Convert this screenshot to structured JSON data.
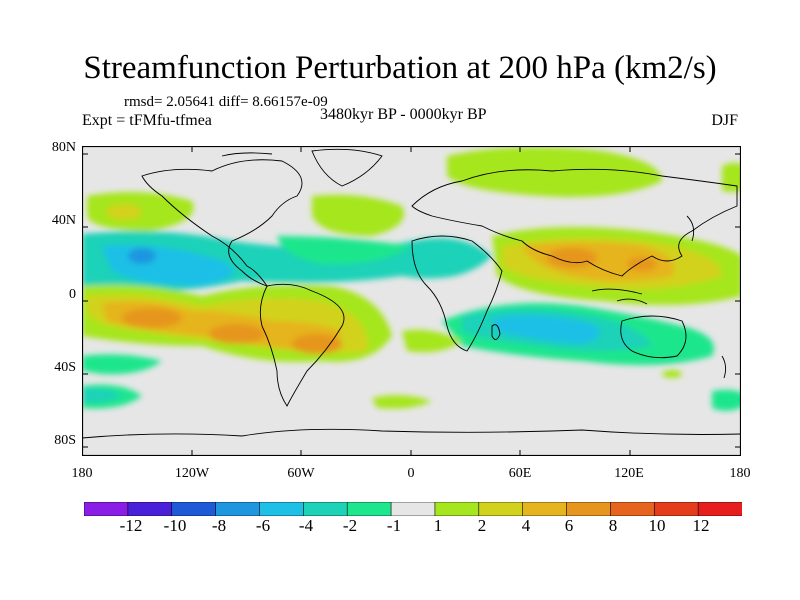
{
  "title": "Streamfunction Perturbation at 200 hPa (km2/s)",
  "stats": "rmsd= 2.05641  diff= 8.66157e-09",
  "experiment": "Expt = tFMfu-tfmea",
  "period": "3480kyr BP - 0000kyr BP",
  "season": "DJF",
  "axes": {
    "lat_labels": [
      "80N",
      "40N",
      "0",
      "40S",
      "80S"
    ],
    "lon_labels": [
      "180",
      "120W",
      "60W",
      "0",
      "60E",
      "120E",
      "180"
    ]
  },
  "colorbar": {
    "labels": [
      "-12",
      "-10",
      "-8",
      "-6",
      "-4",
      "-2",
      "-1",
      "1",
      "2",
      "4",
      "6",
      "8",
      "10",
      "12"
    ],
    "colors": [
      "#8a1ee6",
      "#4a20d8",
      "#1e5ad8",
      "#1e96e0",
      "#1ec0e6",
      "#1ed2b8",
      "#1ee68c",
      "#e6e6e6",
      "#a6e61e",
      "#d2d21e",
      "#e6b41e",
      "#e6961e",
      "#e6641e",
      "#e63c1e",
      "#e61e1e"
    ]
  },
  "colors": {
    "background": "#e6e6e6",
    "coast": "#000000"
  }
}
